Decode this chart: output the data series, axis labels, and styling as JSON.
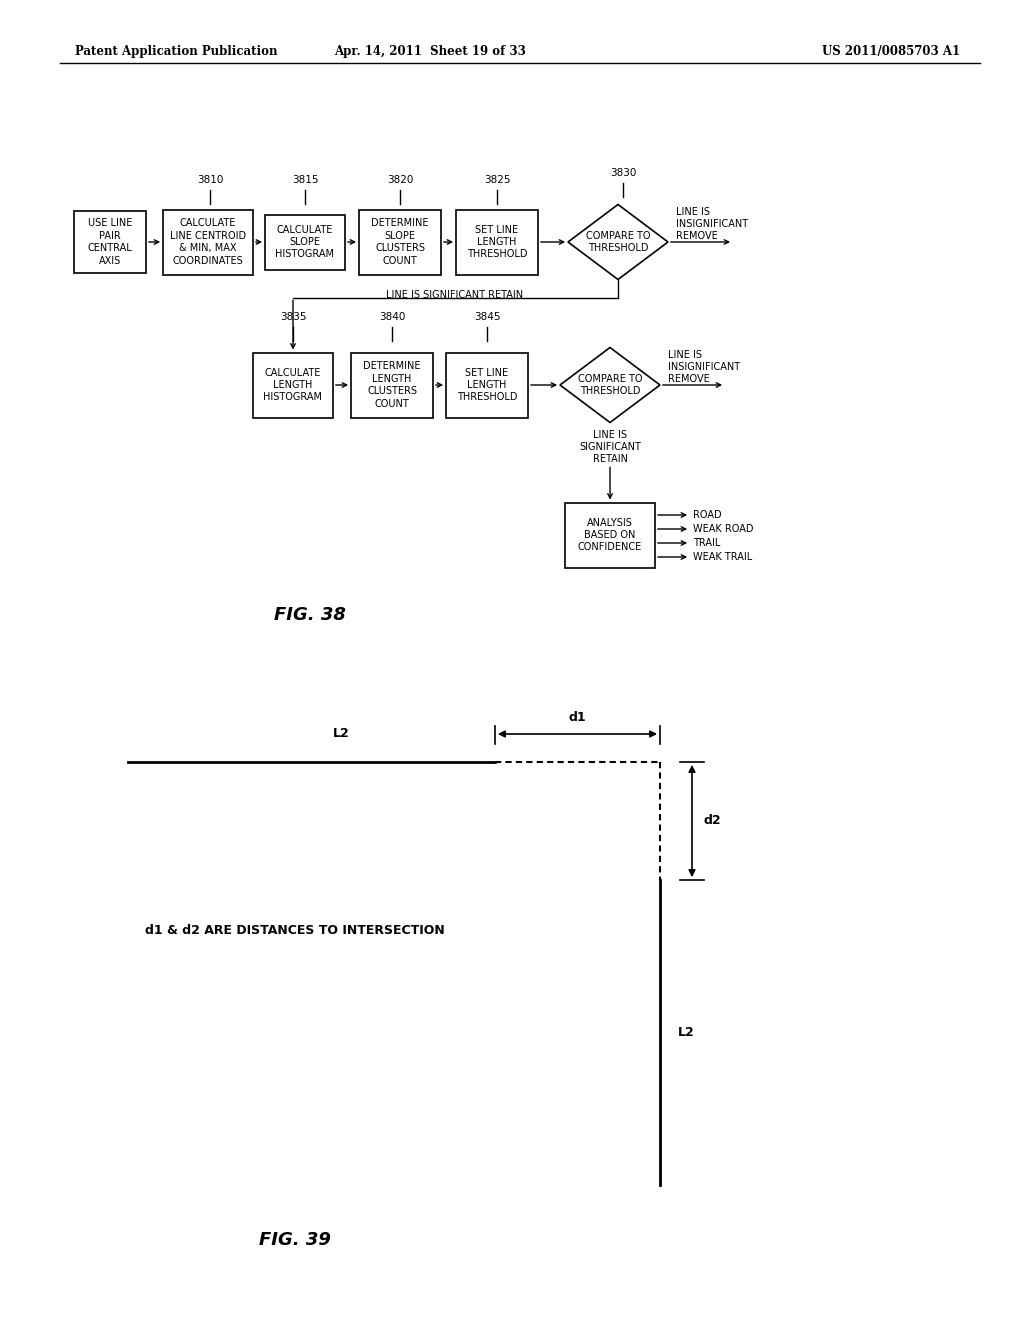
{
  "header_left": "Patent Application Publication",
  "header_center": "Apr. 14, 2011  Sheet 19 of 33",
  "header_right": "US 2011/0085703 A1",
  "fig38_label": "FIG. 38",
  "fig39_label": "FIG. 39",
  "bg_color": "#ffffff",
  "text_color": "#000000"
}
